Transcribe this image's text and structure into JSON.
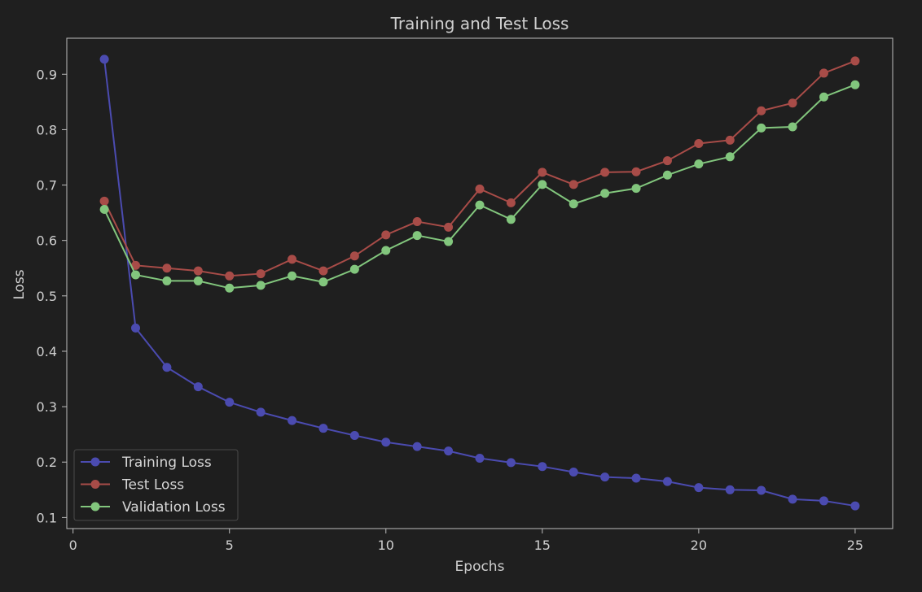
{
  "chart_data": {
    "type": "line",
    "title": "Training and Test Loss",
    "xlabel": "Epochs",
    "ylabel": "Loss",
    "xlim": [
      -0.2,
      26.2
    ],
    "ylim": [
      0.08,
      0.965
    ],
    "xticks": [
      0,
      5,
      10,
      15,
      20,
      25
    ],
    "yticks": [
      0.1,
      0.2,
      0.3,
      0.4,
      0.5,
      0.6,
      0.7,
      0.8,
      0.9
    ],
    "ytick_labels": [
      "0.1",
      "0.2",
      "0.3",
      "0.4",
      "0.5",
      "0.6",
      "0.7",
      "0.8",
      "0.9"
    ],
    "grid": false,
    "legend_position": "lower-left",
    "x": [
      1,
      2,
      3,
      4,
      5,
      6,
      7,
      8,
      9,
      10,
      11,
      12,
      13,
      14,
      15,
      16,
      17,
      18,
      19,
      20,
      21,
      22,
      23,
      24,
      25
    ],
    "series": [
      {
        "name": "Training Loss",
        "color": "#4b4bb0",
        "values": [
          0.927,
          0.442,
          0.371,
          0.336,
          0.308,
          0.29,
          0.275,
          0.261,
          0.248,
          0.236,
          0.228,
          0.22,
          0.207,
          0.199,
          0.192,
          0.182,
          0.173,
          0.171,
          0.165,
          0.154,
          0.15,
          0.149,
          0.133,
          0.13,
          0.121
        ]
      },
      {
        "name": "Test Loss",
        "color": "#a84c48",
        "values": [
          0.671,
          0.555,
          0.55,
          0.545,
          0.536,
          0.54,
          0.566,
          0.545,
          0.572,
          0.61,
          0.634,
          0.624,
          0.693,
          0.668,
          0.723,
          0.701,
          0.723,
          0.724,
          0.744,
          0.775,
          0.781,
          0.834,
          0.848,
          0.902,
          0.924
        ]
      },
      {
        "name": "Validation Loss",
        "color": "#82c67d",
        "values": [
          0.656,
          0.538,
          0.527,
          0.527,
          0.514,
          0.519,
          0.536,
          0.525,
          0.548,
          0.582,
          0.609,
          0.598,
          0.664,
          0.638,
          0.701,
          0.666,
          0.685,
          0.694,
          0.718,
          0.738,
          0.751,
          0.803,
          0.805,
          0.859,
          0.881
        ]
      }
    ]
  }
}
